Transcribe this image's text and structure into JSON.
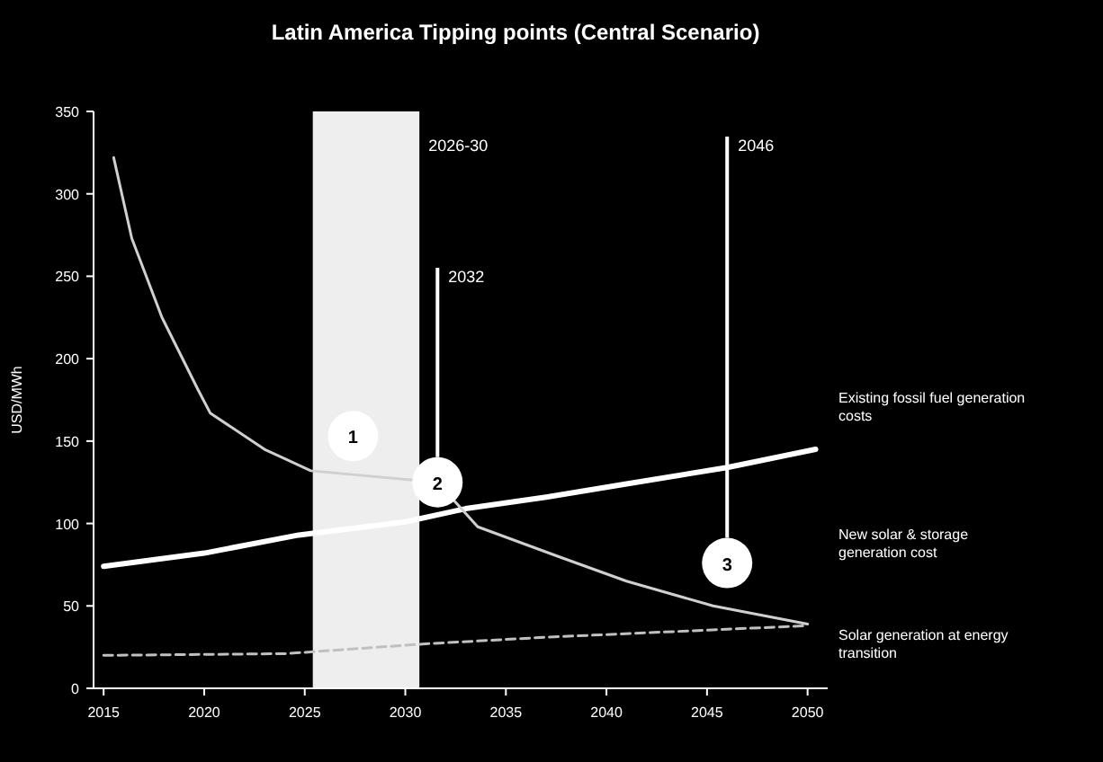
{
  "chart_data": {
    "type": "line",
    "title": "Latin America Tipping points (Central Scenario)",
    "ylabel": "USD/MWh",
    "xlim": [
      2014.5,
      2051
    ],
    "xticks": [
      2015,
      2020,
      2025,
      2030,
      2035,
      2040,
      2045,
      2050
    ],
    "ylim": [
      0,
      350
    ],
    "yticks": [
      0,
      50,
      100,
      150,
      200,
      250,
      300,
      350
    ],
    "series": [
      {
        "name": "Existing fossil fuel generation\ncosts",
        "color": "#ffffff",
        "x": [
          2015,
          2020,
          2024.7,
          2030,
          2033,
          2037,
          2041,
          2046,
          2050.4
        ],
        "values": [
          74,
          82,
          93,
          101,
          109,
          116,
          124,
          134,
          145
        ]
      },
      {
        "name": "New solar & storage\ngeneration cost",
        "color": "#d0d0d0",
        "x": [
          2015.5,
          2016.4,
          2017.9,
          2019.7,
          2020.3,
          2023,
          2025.3,
          2031.6,
          2033.6,
          2037.6,
          2041,
          2045.3,
          2050
        ],
        "values": [
          322,
          273,
          225,
          181,
          167,
          145,
          132,
          125,
          98,
          80,
          65,
          50,
          39
        ]
      },
      {
        "name": "Solar generation at energy\ntransition",
        "color": "#c0c0c0",
        "line_style": "dashed",
        "x": [
          2015,
          2024,
          2031,
          2037,
          2050
        ],
        "values": [
          20,
          21,
          27,
          31,
          38
        ]
      }
    ],
    "bands": [
      {
        "axis": "x",
        "from": 2025.4,
        "to": 2030.7,
        "label": "2026-30",
        "color": "#eeeeee"
      }
    ],
    "ref_lines": [
      {
        "axis": "x",
        "value": 2031.6,
        "label": "2032"
      },
      {
        "axis": "x",
        "value": 2046,
        "label": "2046"
      }
    ],
    "annotations": [
      {
        "text": "1",
        "x": 2027.4,
        "y": 153
      },
      {
        "text": "2",
        "x": 2031.6,
        "y": 125
      },
      {
        "text": "3",
        "x": 2046,
        "y": 76
      }
    ],
    "grid": false
  }
}
